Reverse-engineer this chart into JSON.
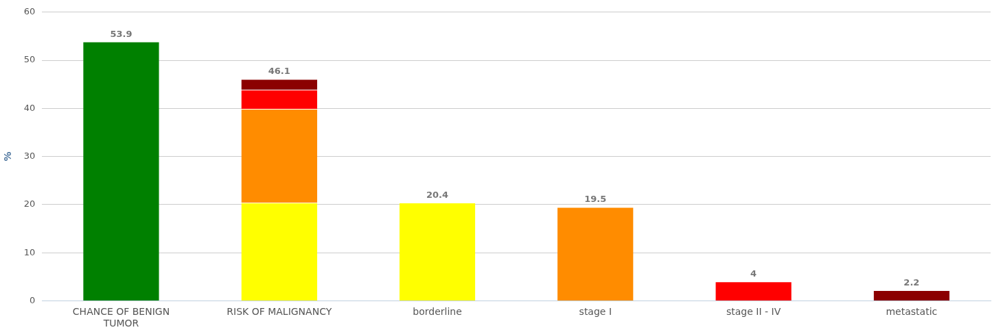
{
  "chart_data": {
    "type": "bar",
    "ylabel": "%",
    "categories": [
      "CHANCE OF BENIGN TUMOR",
      "RISK OF MALIGNANCY",
      "borderline",
      "stage I",
      "stage II - IV",
      "metastatic"
    ],
    "stacked": true,
    "series": [
      {
        "color": "#008000",
        "values": [
          53.9,
          null,
          null,
          null,
          null,
          null
        ]
      },
      {
        "color": "#ffff00",
        "values": [
          null,
          20.4,
          20.4,
          null,
          null,
          null
        ]
      },
      {
        "color": "#ff8c00",
        "values": [
          null,
          19.5,
          null,
          19.5,
          null,
          null
        ]
      },
      {
        "color": "#ff0000",
        "values": [
          null,
          4,
          null,
          null,
          4,
          null
        ]
      },
      {
        "color": "#8b0000",
        "values": [
          null,
          2.2,
          null,
          null,
          null,
          2.2
        ]
      }
    ],
    "totals": [
      "53.9",
      "46.1",
      "20.4",
      "19.5",
      "4",
      "2.2"
    ],
    "ylim": [
      0,
      60
    ],
    "yticks": [
      0,
      10,
      20,
      30,
      40,
      50,
      60
    ],
    "grid": "y",
    "legend": false
  }
}
